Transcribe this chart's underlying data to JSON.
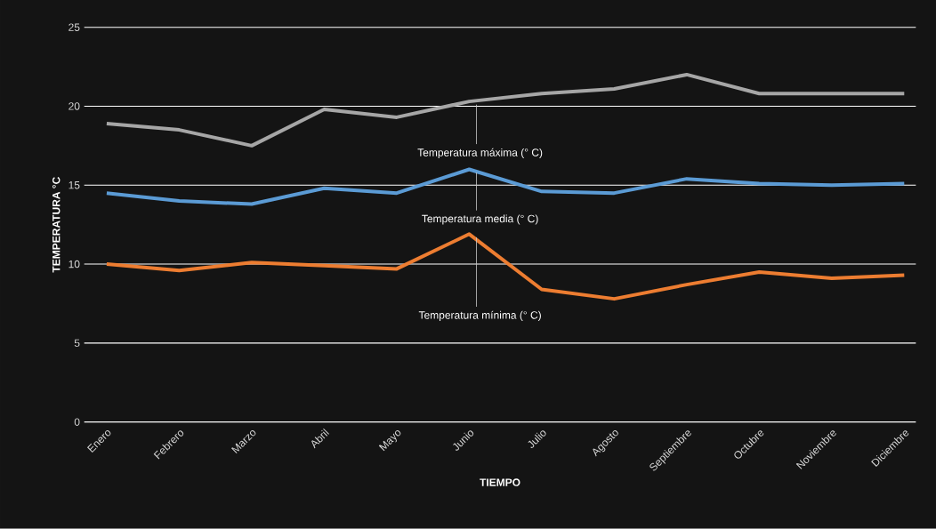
{
  "chart_data": {
    "type": "line",
    "xlabel": "TIEMPO",
    "ylabel": "TEMPERATURA °C",
    "categories": [
      "Enero",
      "Febrero",
      "Marzo",
      "Abril",
      "Mayo",
      "Junio",
      "Julio",
      "Agosto",
      "Septiembre",
      "Octubre",
      "Noviembre",
      "Diciembre"
    ],
    "series": [
      {
        "color": "#a6a6a6",
        "values": [
          18.9,
          18.5,
          17.5,
          19.8,
          19.3,
          20.3,
          20.8,
          21.1,
          22.0,
          20.8,
          20.8,
          20.8
        ]
      },
      {
        "color": "#5b9bd5",
        "values": [
          14.5,
          14.0,
          13.8,
          14.8,
          14.5,
          16.0,
          14.6,
          14.5,
          15.4,
          15.1,
          15.0,
          15.1
        ]
      },
      {
        "color": "#ed7d31",
        "values": [
          10.0,
          9.6,
          10.1,
          9.9,
          9.7,
          11.9,
          8.4,
          7.8,
          8.7,
          9.5,
          9.1,
          9.3
        ]
      }
    ],
    "annotations": [
      {
        "text": "Temperatura máxima (° C)",
        "x": "Junio",
        "y": 20.3
      },
      {
        "text": "Temperatura media (° C)",
        "x": "Junio",
        "y": 16.0
      },
      {
        "text": "Temperatura mínima (° C)",
        "x": "Junio",
        "y": 11.9
      }
    ],
    "ylim": [
      0,
      25
    ],
    "yticks": [
      0,
      5,
      10,
      15,
      20,
      25
    ],
    "grid": "y",
    "marker": "none",
    "line_style": "solid"
  }
}
